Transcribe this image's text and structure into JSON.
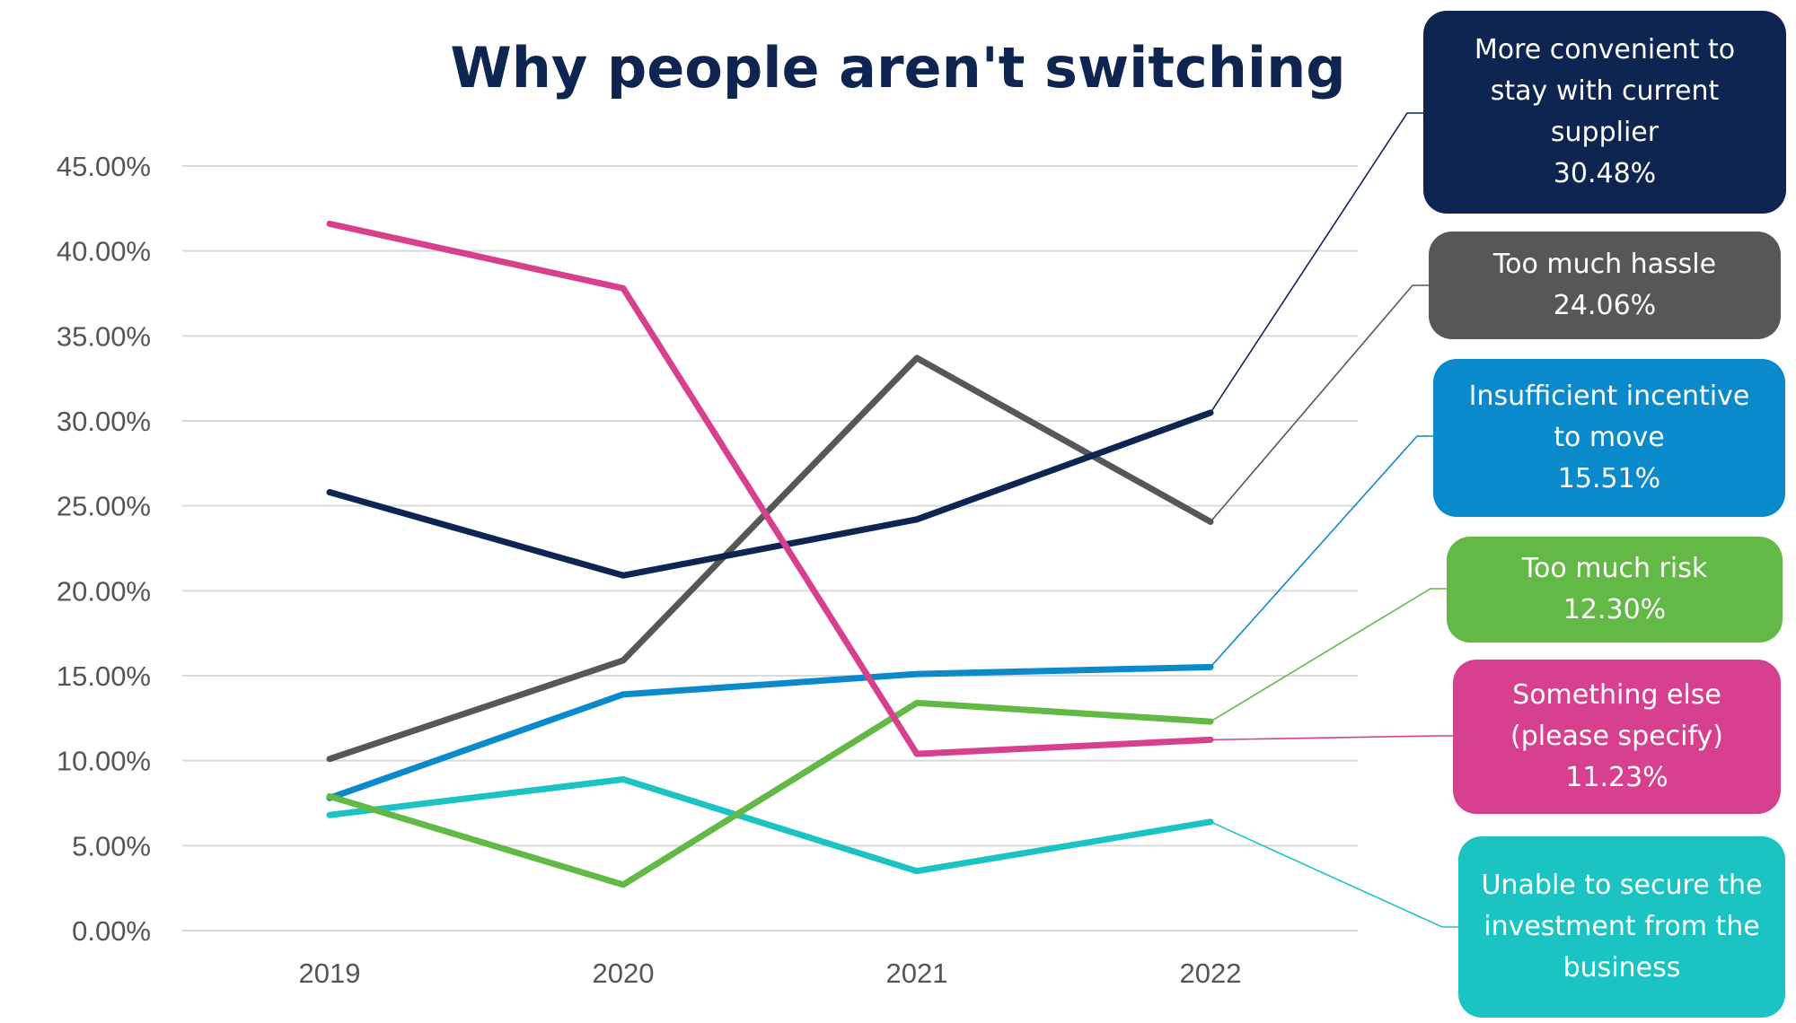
{
  "chart_data": {
    "type": "line",
    "title": "Why people aren't switching",
    "categories": [
      "2019",
      "2020",
      "2021",
      "2022"
    ],
    "ylim": [
      0,
      45
    ],
    "y_ticks": [
      "0.00%",
      "5.00%",
      "10.00%",
      "15.00%",
      "20.00%",
      "25.00%",
      "30.00%",
      "35.00%",
      "40.00%",
      "45.00%"
    ],
    "grid": true,
    "legend": "callouts at right",
    "series": [
      {
        "name": "More convenient to stay with current supplier",
        "label_lines": [
          "More convenient to",
          "stay with current",
          "supplier"
        ],
        "end_label": "30.48%",
        "color": "#0d2550",
        "values": [
          25.8,
          20.9,
          24.2,
          30.48
        ]
      },
      {
        "name": "Too much hassle",
        "label_lines": [
          "Too much hassle"
        ],
        "end_label": "24.06%",
        "color": "#575757",
        "values": [
          10.1,
          15.9,
          33.7,
          24.06
        ]
      },
      {
        "name": "Insufficient incentive to move",
        "label_lines": [
          "Insufficient incentive",
          "to move"
        ],
        "end_label": "15.51%",
        "color": "#0b8acb",
        "values": [
          7.8,
          13.9,
          15.1,
          15.51
        ]
      },
      {
        "name": "Too much risk",
        "label_lines": [
          "Too much risk"
        ],
        "end_label": "12.30%",
        "color": "#63b946",
        "values": [
          7.9,
          2.7,
          13.4,
          12.3
        ]
      },
      {
        "name": "Something else (please specify)",
        "label_lines": [
          "Something else",
          "(please specify)"
        ],
        "end_label": "11.23%",
        "color": "#d7408e",
        "values": [
          41.6,
          37.8,
          10.4,
          11.23
        ]
      },
      {
        "name": "Unable to secure the investment from the business",
        "label_lines": [
          "Unable to secure the",
          "investment from the",
          "business"
        ],
        "end_label": "",
        "color": "#1cc3c3",
        "values": [
          6.8,
          8.9,
          3.5,
          6.4
        ]
      }
    ]
  }
}
